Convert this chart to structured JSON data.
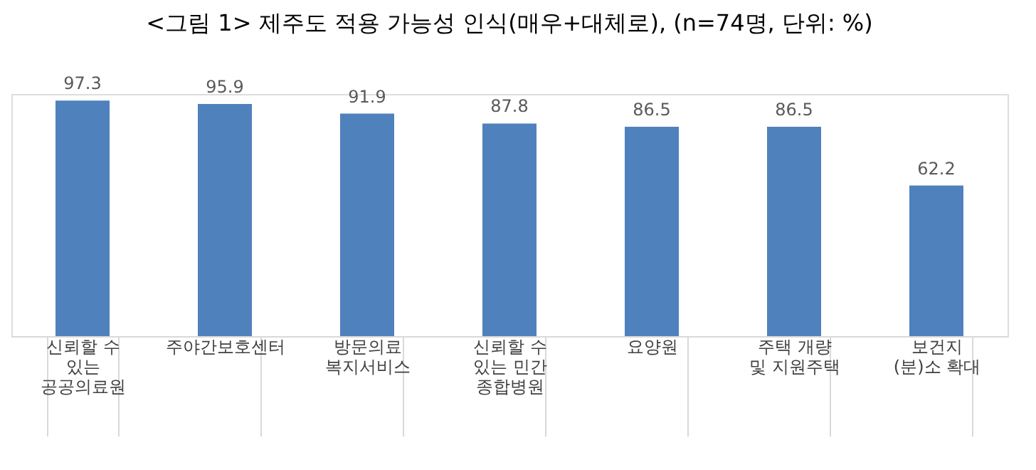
{
  "chart_data": {
    "type": "bar",
    "title": "<그림 1> 제주도 적용 가능성 인식(매우+대체로), (n=74명, 단위: %)",
    "categories": [
      "신뢰할 수\n있는\n공공의료원",
      "주야간보호센터",
      "방문의료\n복지서비스",
      "신뢰할 수\n있는 민간\n종합병원",
      "요양원",
      "주택 개량\n및 지원주택",
      "보건지\n(분)소 확대"
    ],
    "values": [
      97.3,
      95.9,
      91.9,
      87.8,
      86.5,
      86.5,
      62.2
    ],
    "color": "#4f81bd",
    "data_labels": true,
    "grid": false,
    "tick_labels": "x"
  }
}
